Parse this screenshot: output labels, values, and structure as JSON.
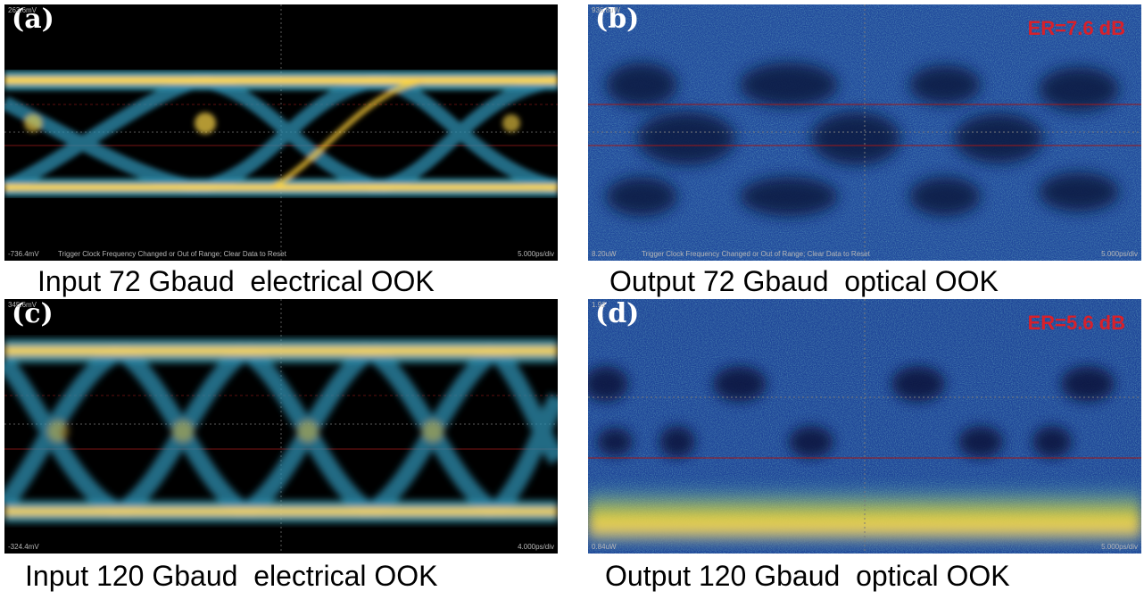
{
  "panels": {
    "a": {
      "letter": "(a)",
      "scale_top": "263.6mV",
      "scale_bottom": "-736.4mV",
      "trigger_msg": "Trigger Clock Frequency Changed or Out of Range; Clear Data to Reset",
      "timebase": "5.000ps/div",
      "caption": "Input 72 Gbaud  electrical OOK"
    },
    "b": {
      "letter": "(b)",
      "er": "ER=7.6 dB",
      "scale_top": "936.8uW",
      "scale_bottom": "8.20uW",
      "trigger_msg": "Trigger Clock Frequency Changed or Out of Range; Clear Data to Reset",
      "timebase": "5.000ps/div",
      "caption": "Output 72 Gbaud  optical OOK"
    },
    "c": {
      "letter": "(c)",
      "scale_top": "345.6mV",
      "scale_bottom": "-324.4mV",
      "timebase": "4.000ps/div",
      "caption": "Input 120 Gbaud  electrical OOK"
    },
    "d": {
      "letter": "(d)",
      "er": "ER=5.6 dB",
      "scale_top": "1.92",
      "scale_bottom": "0.84uW",
      "timebase": "5.000ps/div",
      "caption": "Output 120 Gbaud  optical OOK"
    }
  },
  "colors": {
    "panel_bg": "#000000",
    "trace_hot": "#ffd84a",
    "trace_mid": "#3fb0c8",
    "noise_blue": "#1d3f8c",
    "er_label": "#d8202a"
  }
}
